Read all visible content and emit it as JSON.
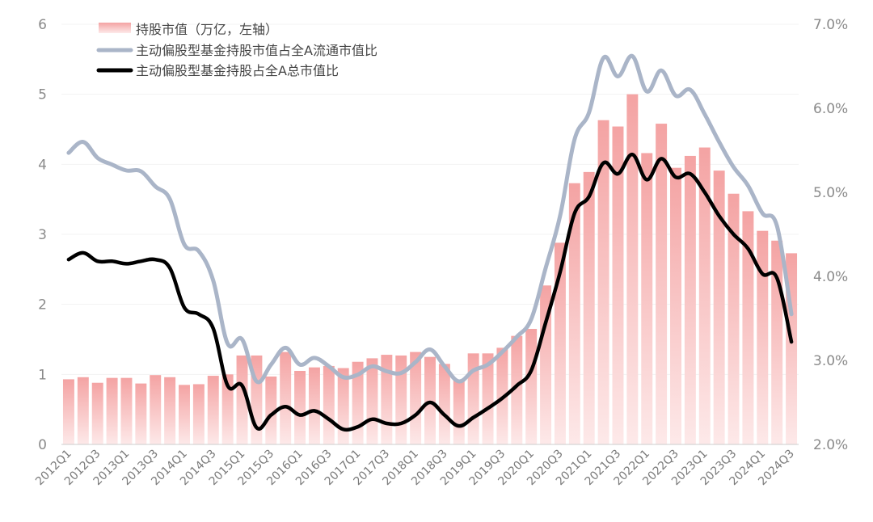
{
  "chart_data": {
    "type": "bar+line",
    "title": "",
    "legend": {
      "placement": "top-left",
      "entries": [
        {
          "label": "持股市值（万亿，左轴）",
          "kind": "bar"
        },
        {
          "label": "主动偏股型基金持股市值占全A流通市值比",
          "kind": "line"
        },
        {
          "label": "主动偏股型基金持股占全A总市值比",
          "kind": "line"
        }
      ]
    },
    "y_left": {
      "min": 0,
      "max": 6,
      "ticks": [
        "0",
        "1",
        "2",
        "3",
        "4",
        "5",
        "6"
      ]
    },
    "y_right": {
      "min": 2.0,
      "max": 7.0,
      "ticks": [
        "2.0%",
        "3.0%",
        "4.0%",
        "5.0%",
        "6.0%",
        "7.0%"
      ]
    },
    "x_tick_labels": [
      "2012Q1",
      "2012Q3",
      "2013Q1",
      "2013Q3",
      "2014Q1",
      "2014Q3",
      "2015Q1",
      "2015Q3",
      "2016Q1",
      "2016Q3",
      "2017Q1",
      "2017Q3",
      "2018Q1",
      "2018Q3",
      "2019Q1",
      "2019Q3",
      "2020Q1",
      "2020Q3",
      "2021Q1",
      "2021Q3",
      "2022Q1",
      "2022Q3",
      "2023Q1",
      "2023Q3",
      "2024Q1",
      "2024Q3"
    ],
    "grid": "horizontal",
    "colors": {
      "bar_top": "#f4a3a3",
      "bar_bottom": "#fde9e9",
      "float_share": "#aab5c8",
      "total_share": "#000000",
      "axis": "#cccccc",
      "tick": "#8a8a8a"
    },
    "series": [
      {
        "name": "持股市值（万亿，左轴）",
        "axis": "left",
        "kind": "bar",
        "values": [
          0.93,
          0.96,
          0.88,
          0.95,
          0.95,
          0.87,
          0.99,
          0.96,
          0.85,
          0.86,
          0.98,
          1.0,
          1.27,
          1.27,
          0.97,
          1.32,
          1.05,
          1.1,
          1.12,
          1.09,
          1.18,
          1.23,
          1.28,
          1.27,
          1.32,
          1.25,
          1.15,
          0.92,
          1.3,
          1.3,
          1.38,
          1.55,
          1.65,
          2.27,
          2.88,
          3.73,
          3.89,
          4.63,
          4.54,
          5.0,
          4.16,
          4.58,
          3.95,
          4.12,
          4.24,
          3.91,
          3.58,
          3.33,
          3.05,
          2.91,
          2.73
        ]
      },
      {
        "name": "主动偏股型基金持股市值占全A流通市值比",
        "axis": "right",
        "kind": "line",
        "values": [
          5.47,
          5.6,
          5.41,
          5.33,
          5.26,
          5.25,
          5.07,
          4.92,
          4.38,
          4.3,
          3.95,
          3.2,
          3.25,
          2.75,
          2.95,
          3.15,
          2.95,
          3.03,
          2.93,
          2.8,
          2.83,
          2.93,
          2.87,
          2.85,
          2.98,
          3.13,
          2.93,
          2.75,
          2.88,
          2.95,
          3.1,
          3.28,
          3.49,
          4.1,
          4.72,
          5.63,
          5.95,
          6.6,
          6.38,
          6.62,
          6.2,
          6.45,
          6.15,
          6.22,
          5.93,
          5.6,
          5.3,
          5.08,
          4.75,
          4.6,
          3.55
        ]
      },
      {
        "name": "主动偏股型基金持股占全A总市值比",
        "axis": "right",
        "kind": "line",
        "values": [
          4.2,
          4.28,
          4.18,
          4.18,
          4.15,
          4.18,
          4.2,
          4.1,
          3.63,
          3.55,
          3.38,
          2.7,
          2.7,
          2.2,
          2.35,
          2.45,
          2.35,
          2.4,
          2.3,
          2.18,
          2.21,
          2.3,
          2.25,
          2.25,
          2.35,
          2.5,
          2.35,
          2.22,
          2.32,
          2.43,
          2.55,
          2.7,
          2.88,
          3.45,
          4.05,
          4.75,
          4.95,
          5.35,
          5.22,
          5.45,
          5.15,
          5.4,
          5.18,
          5.22,
          5.0,
          4.72,
          4.5,
          4.33,
          4.03,
          3.98,
          3.22
        ]
      }
    ]
  }
}
